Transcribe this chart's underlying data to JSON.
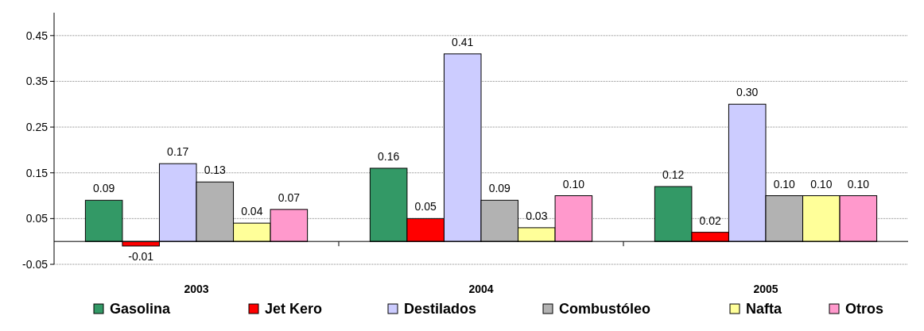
{
  "chart_data": {
    "type": "bar",
    "categories": [
      "2003",
      "2004",
      "2005"
    ],
    "series": [
      {
        "name": "Gasolina",
        "color": "#339966",
        "values": [
          0.09,
          0.16,
          0.12
        ],
        "value_labels": [
          "0.09",
          "0.16",
          "0.12"
        ]
      },
      {
        "name": "Jet Kero",
        "color": "#ff0000",
        "values": [
          -0.01,
          0.05,
          0.02
        ],
        "value_labels": [
          "-0.01",
          "0.05",
          "0.02"
        ]
      },
      {
        "name": "Destilados",
        "color": "#ccccff",
        "values": [
          0.17,
          0.41,
          0.3
        ],
        "value_labels": [
          "0.17",
          "0.41",
          "0.30"
        ]
      },
      {
        "name": "Combustóleo",
        "color": "#b2b2b2",
        "values": [
          0.13,
          0.09,
          0.1
        ],
        "value_labels": [
          "0.13",
          "0.09",
          "0.10"
        ]
      },
      {
        "name": "Nafta",
        "color": "#ffff99",
        "values": [
          0.04,
          0.03,
          0.1
        ],
        "value_labels": [
          "0.04",
          "0.03",
          "0.10"
        ]
      },
      {
        "name": "Otros",
        "color": "#ff99cc",
        "values": [
          0.07,
          0.1,
          0.1
        ],
        "value_labels": [
          "0.07",
          "0.10",
          "0.10"
        ]
      }
    ],
    "ylim": [
      -0.05,
      0.5
    ],
    "yticks": [
      -0.05,
      0.05,
      0.15,
      0.25,
      0.35,
      0.45
    ],
    "grid": "y",
    "legend": "bottom"
  }
}
